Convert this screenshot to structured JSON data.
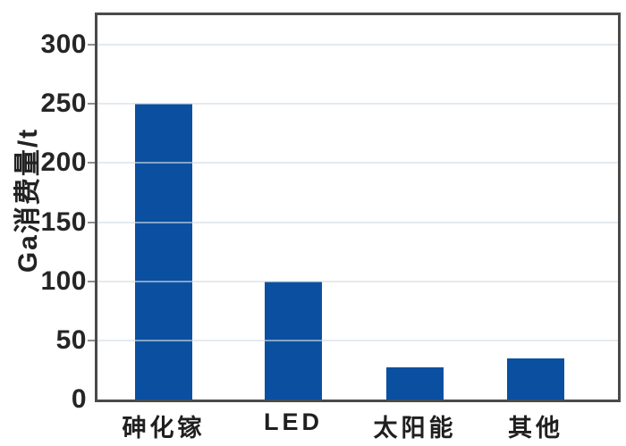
{
  "chart_data": {
    "type": "bar",
    "title": "",
    "categories": [
      "砷化镓",
      "LED",
      "太阳能",
      "其他"
    ],
    "values": [
      250,
      100,
      27,
      35
    ],
    "xlabel": "",
    "ylabel": "Ga消费量/t",
    "yticks": [
      0,
      50,
      100,
      150,
      200,
      250,
      300
    ],
    "ylim": [
      0,
      325
    ],
    "grid": true,
    "legend_position": "none"
  },
  "colors": {
    "bar": "#0b50a0",
    "frame": "#4a4a4a",
    "gridline": "rgba(210,220,228,0.6)",
    "tick_text": "#252525",
    "background": "#ffffff"
  }
}
